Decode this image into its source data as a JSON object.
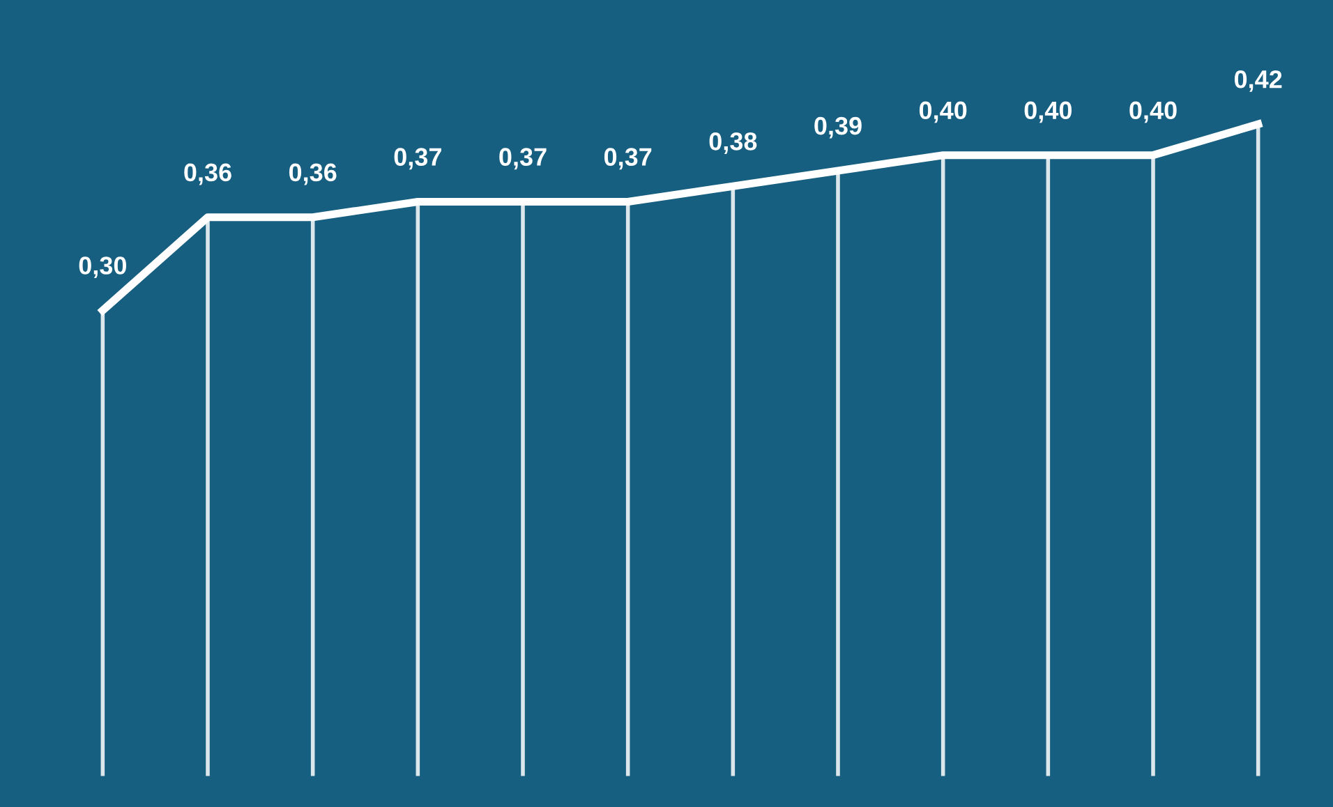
{
  "chart_data": {
    "type": "line",
    "grid": "x",
    "legend": false,
    "categories": [
      null,
      null,
      null,
      null,
      null,
      null,
      null,
      null,
      null,
      null,
      null,
      null
    ],
    "ylim": [
      -0.02,
      0.5
    ],
    "tick_labels": false,
    "series": [
      {
        "color": "#ffffff",
        "values": [
          0.3,
          0.36,
          0.36,
          0.37,
          0.37,
          0.37,
          0.38,
          0.39,
          0.4,
          0.4,
          0.4,
          0.42
        ],
        "value_labels": [
          "0,30",
          "0,36",
          "0,36",
          "0,37",
          "0,37",
          "0,37",
          "0,38",
          "0,39",
          "0,40",
          "0,40",
          "0,40",
          "0,42"
        ]
      }
    ]
  }
}
